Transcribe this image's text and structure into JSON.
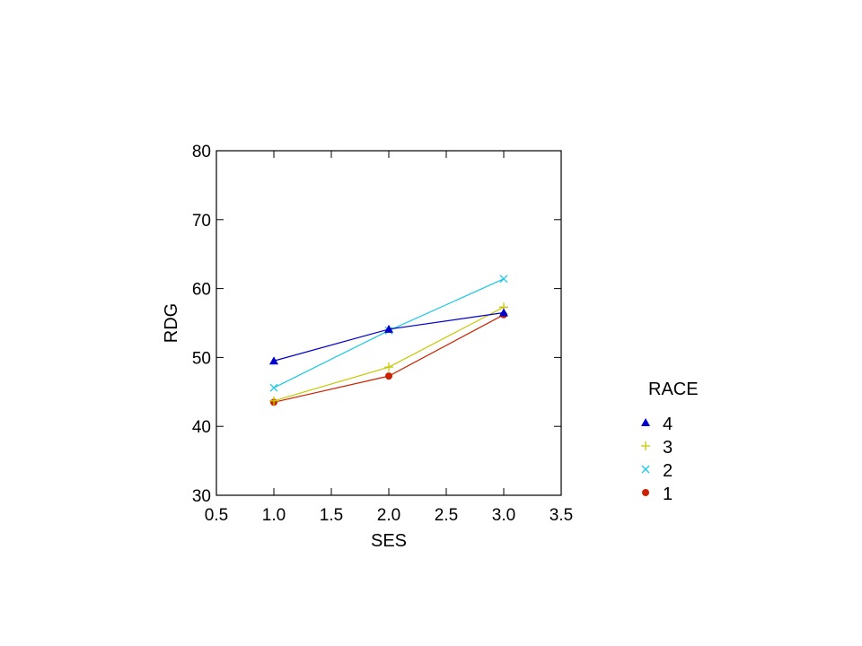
{
  "chart_data": {
    "type": "line",
    "title": "",
    "xlabel": "SES",
    "ylabel": "RDG",
    "xlim": [
      0.5,
      3.5
    ],
    "ylim": [
      30,
      80
    ],
    "xticks": [
      "0.5",
      "1.0",
      "1.5",
      "2.0",
      "2.5",
      "3.0",
      "3.5"
    ],
    "yticks": [
      "30",
      "40",
      "50",
      "60",
      "70",
      "80"
    ],
    "grid": false,
    "legend_title": "RACE",
    "legend_placement": "right",
    "series": [
      {
        "name": "4",
        "color": "#0000cc",
        "marker": "triangle",
        "x": [
          1,
          2,
          3
        ],
        "y": [
          49.5,
          54.1,
          56.5
        ]
      },
      {
        "name": "3",
        "color": "#c8c800",
        "marker": "plus",
        "x": [
          1,
          2,
          3
        ],
        "y": [
          43.7,
          48.6,
          57.3
        ]
      },
      {
        "name": "2",
        "color": "#19c8e6",
        "marker": "x",
        "x": [
          1,
          2,
          3
        ],
        "y": [
          45.6,
          53.9,
          61.4
        ]
      },
      {
        "name": "1",
        "color": "#cc2200",
        "marker": "circle",
        "x": [
          1,
          2,
          3
        ],
        "y": [
          43.5,
          47.3,
          56.2
        ]
      }
    ]
  }
}
